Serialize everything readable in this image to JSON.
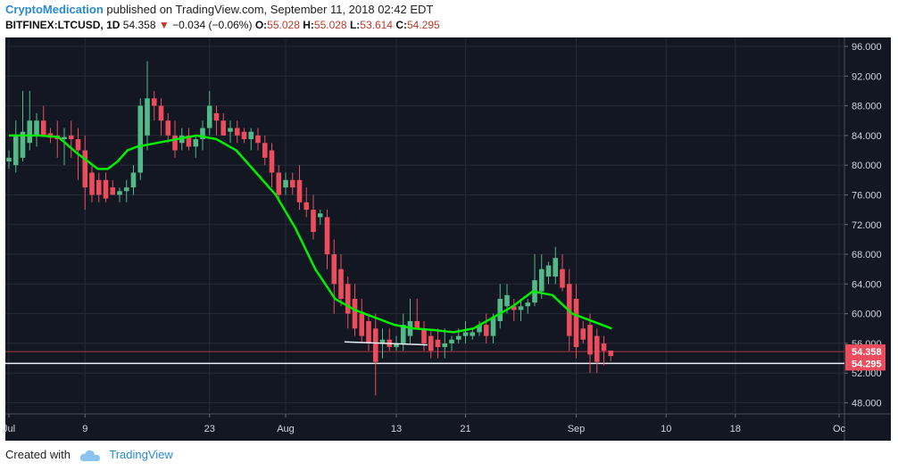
{
  "header": {
    "author": "CryptoMedication",
    "published_text": "published on TradingView.com, September 11, 2018 02:42 EDT",
    "symbol": "BITFINEX:LTCUSD, 1D",
    "last": "54.358",
    "change": "−0.034 (−0.06%)",
    "open_label": "O:",
    "open": "55.028",
    "high_label": "H:",
    "high": "55.028",
    "low_label": "L:",
    "low": "53.614",
    "close_label": "C:",
    "close": "54.295"
  },
  "footer": {
    "created_with": "Created with",
    "brand": "TradingView"
  },
  "colors": {
    "background": "#131722",
    "up": "#53b987",
    "down": "#eb4d5c",
    "ma": "#00ee00",
    "white_line": "#e8ecf5",
    "grid": "#262b38"
  },
  "chart_data": {
    "type": "candlestick",
    "ylim": [
      46.5,
      97.2
    ],
    "x_tick_labels": [
      "Jul",
      "9",
      "23",
      "Aug",
      "13",
      "21",
      "Sep",
      "10",
      "18",
      "Oc"
    ],
    "y_tick_labels": [
      "48.000",
      "52.000",
      "56.000",
      "60.000",
      "64.000",
      "68.000",
      "72.000",
      "76.000",
      "80.000",
      "84.000",
      "88.000",
      "92.000",
      "96.000"
    ],
    "y_ticks": [
      48,
      52,
      56,
      60,
      64,
      68,
      72,
      76,
      80,
      84,
      88,
      92,
      96
    ],
    "price_labels": [
      {
        "label": "54.358",
        "value": 54.9
      },
      {
        "label": "54.295",
        "value": 53.3
      }
    ],
    "hlines": [
      {
        "value": 53.3,
        "color": "#e8ecf5"
      },
      {
        "value": 54.9,
        "color": "#a83a44"
      }
    ],
    "annotation_line": {
      "x1": 48.5,
      "y1": 56.2,
      "x2": 60.5,
      "y2": 55.8
    },
    "candles": [
      {
        "o": 80.5,
        "h": 82,
        "l": 79.5,
        "c": 81
      },
      {
        "o": 80,
        "h": 86,
        "l": 79,
        "c": 84
      },
      {
        "o": 81,
        "h": 90,
        "l": 80.5,
        "c": 84.5
      },
      {
        "o": 83,
        "h": 90,
        "l": 82,
        "c": 86
      },
      {
        "o": 84,
        "h": 87,
        "l": 82.5,
        "c": 86
      },
      {
        "o": 86,
        "h": 88,
        "l": 84,
        "c": 84
      },
      {
        "o": 84.3,
        "h": 85,
        "l": 83,
        "c": 83.7
      },
      {
        "o": 84,
        "h": 86,
        "l": 81,
        "c": 83.5
      },
      {
        "o": 83.5,
        "h": 85,
        "l": 80,
        "c": 83.8
      },
      {
        "o": 84,
        "h": 86,
        "l": 81,
        "c": 83.5
      },
      {
        "o": 83.5,
        "h": 85,
        "l": 78,
        "c": 82
      },
      {
        "o": 82,
        "h": 84,
        "l": 74,
        "c": 77
      },
      {
        "o": 79,
        "h": 80,
        "l": 75,
        "c": 76
      },
      {
        "o": 78,
        "h": 79,
        "l": 75,
        "c": 76
      },
      {
        "o": 78,
        "h": 79,
        "l": 75,
        "c": 75.5
      },
      {
        "o": 77,
        "h": 78,
        "l": 76,
        "c": 76
      },
      {
        "o": 76,
        "h": 77,
        "l": 75,
        "c": 76.5
      },
      {
        "o": 76.5,
        "h": 78,
        "l": 75,
        "c": 77
      },
      {
        "o": 77,
        "h": 80,
        "l": 76,
        "c": 79
      },
      {
        "o": 79,
        "h": 89,
        "l": 78,
        "c": 88
      },
      {
        "o": 84,
        "h": 94,
        "l": 82,
        "c": 89
      },
      {
        "o": 89,
        "h": 90,
        "l": 86,
        "c": 88
      },
      {
        "o": 88,
        "h": 89,
        "l": 84,
        "c": 86
      },
      {
        "o": 86,
        "h": 87,
        "l": 83,
        "c": 84
      },
      {
        "o": 84,
        "h": 86,
        "l": 81,
        "c": 82
      },
      {
        "o": 83,
        "h": 85,
        "l": 82,
        "c": 84
      },
      {
        "o": 84,
        "h": 85,
        "l": 82,
        "c": 82.5
      },
      {
        "o": 82.5,
        "h": 84,
        "l": 81,
        "c": 83.5
      },
      {
        "o": 83.5,
        "h": 86,
        "l": 82,
        "c": 85
      },
      {
        "o": 85,
        "h": 90,
        "l": 84,
        "c": 88
      },
      {
        "o": 87,
        "h": 88,
        "l": 84,
        "c": 86
      },
      {
        "o": 86,
        "h": 87,
        "l": 84,
        "c": 84
      },
      {
        "o": 84.5,
        "h": 86,
        "l": 83,
        "c": 85
      },
      {
        "o": 85,
        "h": 86,
        "l": 83,
        "c": 84
      },
      {
        "o": 84.5,
        "h": 85,
        "l": 83,
        "c": 83.5
      },
      {
        "o": 83.5,
        "h": 85,
        "l": 82,
        "c": 84.5
      },
      {
        "o": 84,
        "h": 85,
        "l": 82,
        "c": 83
      },
      {
        "o": 83,
        "h": 84,
        "l": 80,
        "c": 81
      },
      {
        "o": 82,
        "h": 83,
        "l": 77,
        "c": 79
      },
      {
        "o": 79,
        "h": 80,
        "l": 75,
        "c": 76
      },
      {
        "o": 77,
        "h": 79,
        "l": 76,
        "c": 78
      },
      {
        "o": 78,
        "h": 79,
        "l": 76,
        "c": 77
      },
      {
        "o": 78,
        "h": 80,
        "l": 74,
        "c": 75
      },
      {
        "o": 75,
        "h": 77,
        "l": 73,
        "c": 74
      },
      {
        "o": 74,
        "h": 76,
        "l": 70,
        "c": 71
      },
      {
        "o": 73,
        "h": 74,
        "l": 72,
        "c": 73.5
      },
      {
        "o": 73,
        "h": 74,
        "l": 66,
        "c": 68
      },
      {
        "o": 68,
        "h": 70,
        "l": 60,
        "c": 64
      },
      {
        "o": 66,
        "h": 68,
        "l": 61,
        "c": 62
      },
      {
        "o": 64,
        "h": 65,
        "l": 58,
        "c": 60
      },
      {
        "o": 62,
        "h": 64,
        "l": 57,
        "c": 58
      },
      {
        "o": 60,
        "h": 62,
        "l": 56,
        "c": 57
      },
      {
        "o": 59,
        "h": 60,
        "l": 55,
        "c": 56
      },
      {
        "o": 58,
        "h": 60,
        "l": 49,
        "c": 53.5
      },
      {
        "o": 56,
        "h": 58,
        "l": 54,
        "c": 56.5
      },
      {
        "o": 56.5,
        "h": 58,
        "l": 55,
        "c": 55.5
      },
      {
        "o": 55.5,
        "h": 57,
        "l": 55,
        "c": 56
      },
      {
        "o": 56,
        "h": 60,
        "l": 55,
        "c": 58.5
      },
      {
        "o": 57,
        "h": 62,
        "l": 56,
        "c": 59
      },
      {
        "o": 59,
        "h": 62,
        "l": 58,
        "c": 58
      },
      {
        "o": 58,
        "h": 59,
        "l": 55,
        "c": 56
      },
      {
        "o": 57,
        "h": 58,
        "l": 54,
        "c": 55
      },
      {
        "o": 56.5,
        "h": 58,
        "l": 54,
        "c": 55.5
      },
      {
        "o": 55.5,
        "h": 58,
        "l": 54,
        "c": 56
      },
      {
        "o": 56,
        "h": 57,
        "l": 55,
        "c": 56.5
      },
      {
        "o": 56.5,
        "h": 58,
        "l": 56,
        "c": 57
      },
      {
        "o": 57,
        "h": 59,
        "l": 56,
        "c": 57.5
      },
      {
        "o": 57,
        "h": 58,
        "l": 56.5,
        "c": 57.5
      },
      {
        "o": 57.5,
        "h": 59,
        "l": 57,
        "c": 58.5
      },
      {
        "o": 58.5,
        "h": 60,
        "l": 56,
        "c": 57
      },
      {
        "o": 57,
        "h": 60,
        "l": 56,
        "c": 59.5
      },
      {
        "o": 59,
        "h": 64,
        "l": 58,
        "c": 62
      },
      {
        "o": 61,
        "h": 64,
        "l": 60,
        "c": 62.5
      },
      {
        "o": 61,
        "h": 62,
        "l": 59,
        "c": 60.5
      },
      {
        "o": 60.5,
        "h": 62,
        "l": 59,
        "c": 61
      },
      {
        "o": 61,
        "h": 62,
        "l": 60,
        "c": 61.5
      },
      {
        "o": 61.5,
        "h": 68,
        "l": 61,
        "c": 64.5
      },
      {
        "o": 63,
        "h": 68,
        "l": 62,
        "c": 66
      },
      {
        "o": 65,
        "h": 67,
        "l": 64,
        "c": 66.5
      },
      {
        "o": 65,
        "h": 69,
        "l": 64,
        "c": 67.5
      },
      {
        "o": 66,
        "h": 68,
        "l": 63,
        "c": 63.5
      },
      {
        "o": 64,
        "h": 66,
        "l": 55,
        "c": 57
      },
      {
        "o": 62,
        "h": 64,
        "l": 54,
        "c": 55.5
      },
      {
        "o": 58,
        "h": 59,
        "l": 56,
        "c": 56.5
      },
      {
        "o": 58.5,
        "h": 60,
        "l": 52,
        "c": 54.5
      },
      {
        "o": 57,
        "h": 58,
        "l": 52,
        "c": 53.5
      },
      {
        "o": 56,
        "h": 57,
        "l": 53,
        "c": 55
      },
      {
        "o": 55.03,
        "h": 55.03,
        "l": 53.61,
        "c": 54.3
      }
    ],
    "ma": [
      [
        0,
        84
      ],
      [
        6,
        84
      ],
      [
        10,
        83.8
      ],
      [
        14,
        81.5
      ],
      [
        18,
        79.5
      ],
      [
        20,
        79.5
      ],
      [
        22,
        80.5
      ],
      [
        24,
        82
      ],
      [
        26,
        82.5
      ],
      [
        30,
        83
      ],
      [
        34,
        83.5
      ],
      [
        38,
        84
      ],
      [
        42,
        83.5
      ],
      [
        46,
        82
      ],
      [
        50,
        79
      ],
      [
        54,
        76
      ],
      [
        58,
        71.5
      ],
      [
        62,
        66
      ],
      [
        66,
        62
      ],
      [
        70,
        60.5
      ],
      [
        74,
        59.5
      ],
      [
        78,
        58.5
      ],
      [
        82,
        58
      ],
      [
        86,
        57.8
      ],
      [
        90,
        57.5
      ],
      [
        94,
        58
      ],
      [
        98,
        59.5
      ],
      [
        102,
        61
      ],
      [
        106,
        63
      ],
      [
        110,
        62.5
      ],
      [
        114,
        60
      ],
      [
        118,
        59
      ],
      [
        122,
        58
      ]
    ]
  }
}
